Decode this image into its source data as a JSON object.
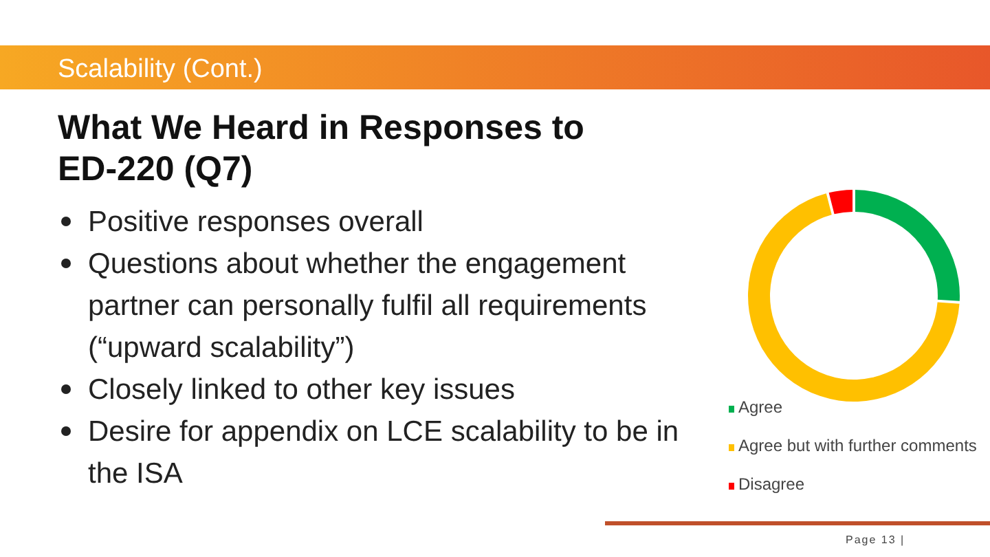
{
  "chart_data": {
    "type": "donut",
    "subtitle": "Scalability (Cont.)",
    "title": "What We Heard in Responses to ED-220 (Q7)",
    "categories": [
      "Agree",
      "Agree but with further comments",
      "Disagree"
    ],
    "values": [
      26,
      70,
      4
    ],
    "colors": [
      "#00b050",
      "#ffc000",
      "#ff0000"
    ],
    "legend": "bottom",
    "annotations": [
      "Positive responses overall",
      "Questions about whether the engagement partner can personally fulfil all requirements (“upward scalability”)",
      "Closely linked to other key issues",
      "Desire for appendix on LCE scalability to be in the ISA",
      "Page 13 |"
    ]
  }
}
